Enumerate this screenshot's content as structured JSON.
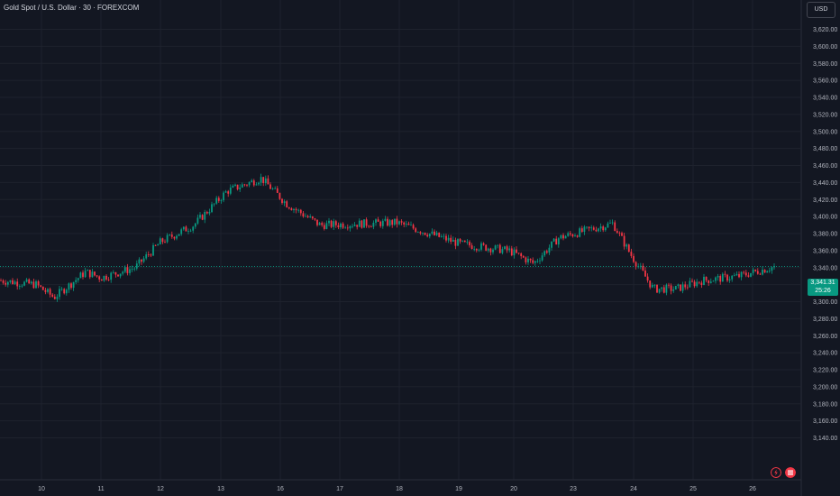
{
  "header": {
    "title": "Gold Spot / U.S. Dollar · 30 · FOREXCOM",
    "currency_button": "USD"
  },
  "last_price": {
    "value_label": "3,341.31",
    "countdown": "25:26"
  },
  "icons": {
    "bolt": "lightning-icon",
    "flag": "flag-icon"
  },
  "colors": {
    "background": "#131722",
    "grid": "#1e222d",
    "up": "#089981",
    "down": "#f23645",
    "axis_text": "#b2b5be",
    "price_line": "#089981"
  },
  "chart_data": {
    "type": "candlestick",
    "symbol": "Gold Spot / U.S. Dollar",
    "interval": "30",
    "exchange": "FOREXCOM",
    "ylim": [
      3130,
      3640
    ],
    "y_ticks": [
      3140,
      3160,
      3180,
      3200,
      3220,
      3240,
      3260,
      3280,
      3300,
      3320,
      3340,
      3360,
      3380,
      3400,
      3420,
      3440,
      3460,
      3480,
      3500,
      3520,
      3540,
      3560,
      3580,
      3600,
      3620
    ],
    "y_tick_labels": [
      "3,140.00",
      "3,160.00",
      "3,180.00",
      "3,200.00",
      "3,220.00",
      "3,240.00",
      "3,260.00",
      "3,280.00",
      "3,300.00",
      "3,320.00",
      "3,340.00",
      "3,360.00",
      "3,380.00",
      "3,400.00",
      "3,420.00",
      "3,440.00",
      "3,460.00",
      "3,480.00",
      "3,500.00",
      "3,520.00",
      "3,540.00",
      "3,560.00",
      "3,580.00",
      "3,600.00",
      "3,620.00"
    ],
    "x_tick_labels": [
      "10",
      "11",
      "12",
      "13",
      "16",
      "17",
      "18",
      "19",
      "20",
      "23",
      "24",
      "25",
      "26"
    ],
    "last_price": 3341.31,
    "grid": true,
    "close_path": [
      {
        "day": "start",
        "close": 3325
      },
      {
        "day": "10",
        "close": 3320
      },
      {
        "day": "10",
        "close": 3305
      },
      {
        "day": "11",
        "close": 3335
      },
      {
        "day": "11",
        "close": 3328
      },
      {
        "day": "12",
        "close": 3340
      },
      {
        "day": "12",
        "close": 3370
      },
      {
        "day": "13",
        "close": 3390
      },
      {
        "day": "13",
        "close": 3430
      },
      {
        "day": "16",
        "close": 3445
      },
      {
        "day": "16",
        "close": 3415
      },
      {
        "day": "17",
        "close": 3390
      },
      {
        "day": "18",
        "close": 3393
      },
      {
        "day": "19",
        "close": 3368
      },
      {
        "day": "20",
        "close": 3360
      },
      {
        "day": "20",
        "close": 3345
      },
      {
        "day": "23",
        "close": 3375
      },
      {
        "day": "23",
        "close": 3392
      },
      {
        "day": "24",
        "close": 3355
      },
      {
        "day": "24",
        "close": 3315
      },
      {
        "day": "25",
        "close": 3315
      },
      {
        "day": "25",
        "close": 3325
      },
      {
        "day": "26",
        "close": 3330
      },
      {
        "day": "26",
        "close": 3341.31
      }
    ]
  }
}
